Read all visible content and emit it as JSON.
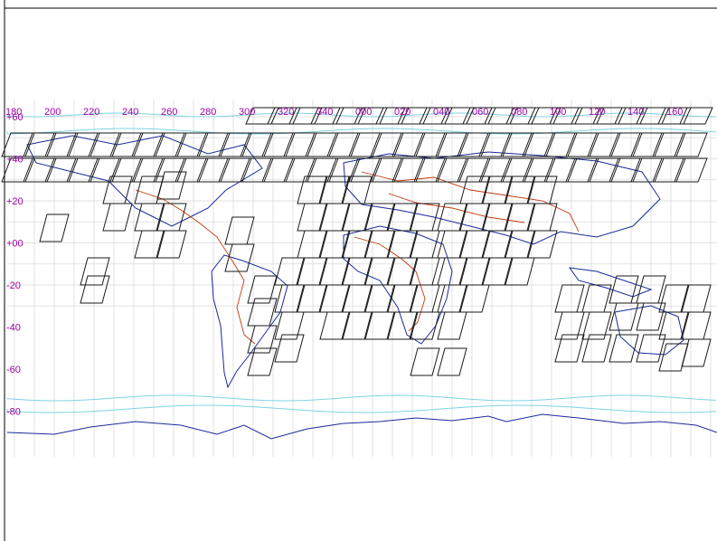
{
  "map": {
    "projection": "equirectangular",
    "lon_labels": [
      "180",
      "200",
      "220",
      "240",
      "260",
      "280",
      "300",
      "320",
      "340",
      "000",
      "020",
      "040",
      "060",
      "080",
      "100",
      "120",
      "140",
      "160"
    ],
    "lat_labels": [
      "+60",
      "+40",
      "+20",
      "+00",
      "-20",
      "-40",
      "-60",
      "-80"
    ],
    "colors": {
      "grid": "#d9d9d9",
      "labels": "#a000a8",
      "coastline": "#1a2a9a",
      "ice_edge": "#7fd3e6",
      "borders": "#c0390b",
      "footprints": "#1a1a1a",
      "frame": "#000000"
    },
    "layers": [
      "graticule",
      "coastlines",
      "sea-ice-edge",
      "country-borders",
      "scene-footprints"
    ]
  }
}
